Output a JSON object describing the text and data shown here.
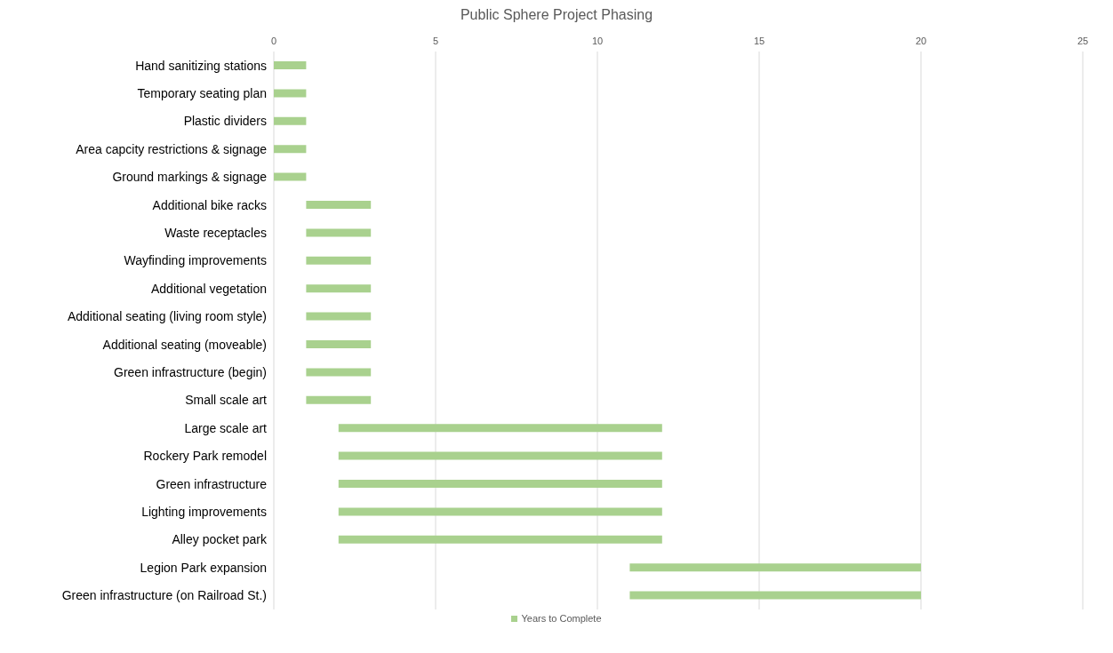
{
  "chart_data": {
    "type": "bar",
    "orientation": "horizontal",
    "title": "Public Sphere Project Phasing",
    "categories": [
      "Hand sanitizing stations",
      "Temporary seating plan",
      "Plastic dividers",
      "Area capcity restrictions & signage",
      "Ground markings & signage",
      "Additional bike racks",
      "Waste receptacles",
      "Wayfinding improvements",
      "Additional vegetation",
      "Additional seating (living room style)",
      "Additional seating (moveable)",
      "Green infrastructure (begin)",
      "Small scale art",
      "Large scale art",
      "Rockery Park remodel",
      "Green infrastructure ",
      "Lighting improvements",
      "Alley pocket park",
      "Legion Park expansion",
      "Green infrastructure (on Railroad St.)"
    ],
    "series": [
      {
        "name": "Years to Complete",
        "color": "#a9d18e",
        "base": [
          0,
          0,
          0,
          0,
          0,
          1,
          1,
          1,
          1,
          1,
          1,
          1,
          1,
          2,
          2,
          2,
          2,
          2,
          11,
          11
        ],
        "values": [
          1,
          1,
          1,
          1,
          1,
          2,
          2,
          2,
          2,
          2,
          2,
          2,
          2,
          10,
          10,
          10,
          10,
          10,
          9,
          9
        ]
      }
    ],
    "xlim": [
      0,
      25
    ],
    "xticks": [
      0,
      5,
      10,
      15,
      20,
      25
    ],
    "grid": "x",
    "legend": "bottom"
  }
}
